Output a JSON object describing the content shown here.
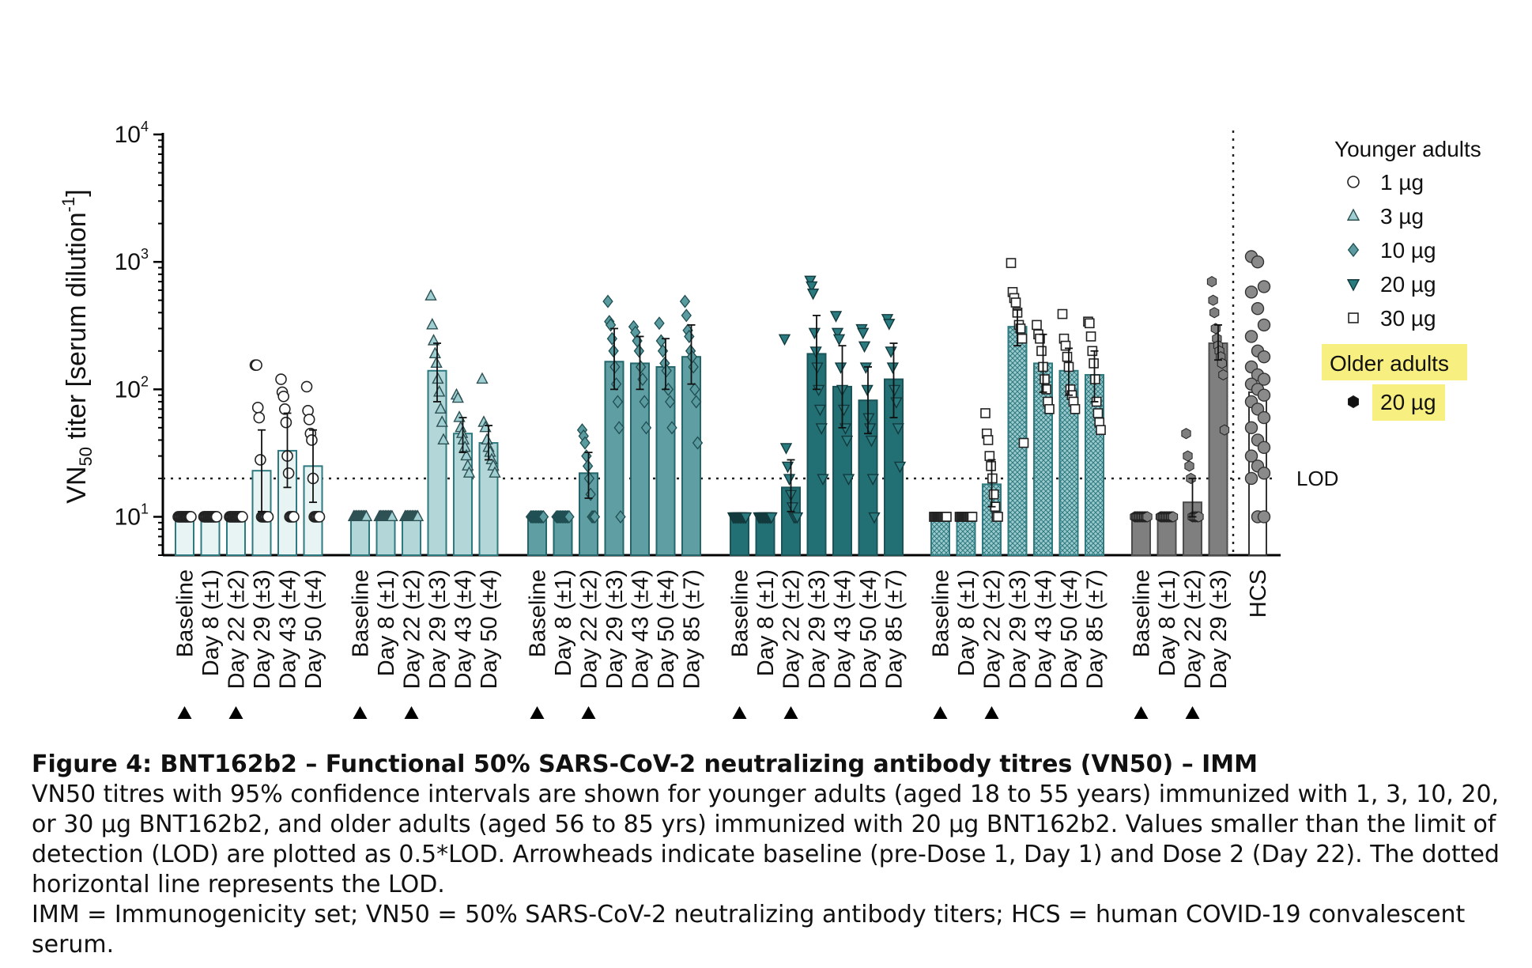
{
  "chart_data": {
    "type": "bar",
    "ylabel": "VN",
    "ylabel_sub": "50",
    "ylabel_rest": " titer [serum dilution",
    "ylabel_sup": "-1",
    "ylabel_end": "]",
    "yscale": "log",
    "ylim": [
      5,
      10000
    ],
    "yticks": [
      {
        "base": "10",
        "exp": "1",
        "value": 10
      },
      {
        "base": "10",
        "exp": "2",
        "value": 100
      },
      {
        "base": "10",
        "exp": "3",
        "value": 1000
      },
      {
        "base": "10",
        "exp": "4",
        "value": 10000
      }
    ],
    "lod": {
      "value": 20,
      "label": "LOD"
    },
    "legend": {
      "placement": "right",
      "young_title": "Younger adults",
      "old_title": "Older adults",
      "items": [
        {
          "label": "1 µg",
          "marker": "circle-open"
        },
        {
          "label": "3 µg",
          "marker": "triangle-up"
        },
        {
          "label": "10 µg",
          "marker": "diamond"
        },
        {
          "label": "20 µg",
          "marker": "triangle-down"
        },
        {
          "label": "30 µg",
          "marker": "square-open"
        }
      ],
      "old_items": [
        {
          "label": "20 µg",
          "marker": "hexagon"
        }
      ],
      "highlight_color": "#f7ef7f"
    },
    "groups": [
      {
        "name": "1 µg",
        "marker": "circle-open",
        "fill": "#e8f4f4",
        "stroke": "#2d7a80",
        "pattern": false,
        "categories": [
          "Baseline",
          "Day 8 (±1)",
          "Day 22 (±2)",
          "Day 29 (±3)",
          "Day 43 (±4)",
          "Day 50 (±4)"
        ],
        "values": [
          10,
          10,
          10,
          23,
          33,
          25
        ],
        "ci_low": [
          10,
          10,
          10,
          11,
          17,
          13
        ],
        "ci_high": [
          10,
          10,
          10,
          48,
          65,
          48
        ],
        "points": [
          [
            10,
            10,
            10,
            10,
            10,
            10,
            10,
            10,
            10,
            10,
            10,
            10
          ],
          [
            10,
            10,
            10,
            10,
            10,
            10,
            10,
            10,
            10,
            10,
            10,
            10
          ],
          [
            10,
            10,
            10,
            10,
            10,
            10,
            10,
            10,
            10,
            10,
            10,
            10
          ],
          [
            155,
            155,
            72,
            60,
            28,
            10,
            10,
            10,
            10,
            10,
            10
          ],
          [
            120,
            95,
            88,
            70,
            55,
            30,
            22,
            10,
            10,
            10,
            10
          ],
          [
            105,
            68,
            58,
            45,
            40,
            20,
            10,
            10,
            10,
            10,
            10
          ]
        ]
      },
      {
        "name": "3 µg",
        "marker": "triangle-up",
        "fill": "#b3d6d8",
        "stroke": "#2d7a80",
        "pattern": false,
        "categories": [
          "Baseline",
          "Day 8 (±1)",
          "Day 22 (±2)",
          "Day 29 (±3)",
          "Day 43 (±4)",
          "Day 50 (±4)"
        ],
        "values": [
          10,
          10,
          10,
          140,
          45,
          38
        ],
        "ci_low": [
          10,
          10,
          10,
          80,
          32,
          28
        ],
        "ci_high": [
          10,
          10,
          10,
          230,
          60,
          52
        ],
        "points": [
          [
            10,
            10,
            10,
            10,
            10,
            10,
            10,
            10,
            10,
            10,
            10,
            10
          ],
          [
            10,
            10,
            10,
            10,
            10,
            10,
            10,
            10,
            10,
            10,
            10,
            10
          ],
          [
            10,
            10,
            10,
            10,
            10,
            10,
            10,
            10,
            10,
            10,
            10,
            10
          ],
          [
            540,
            320,
            240,
            190,
            160,
            120,
            95,
            70,
            55,
            40
          ],
          [
            90,
            85,
            60,
            50,
            45,
            40,
            35,
            30,
            25,
            22
          ],
          [
            120,
            55,
            50,
            40,
            35,
            32,
            28,
            25,
            22
          ]
        ]
      },
      {
        "name": "10 µg",
        "marker": "diamond",
        "fill": "#5f9ea3",
        "stroke": "#23666b",
        "pattern": false,
        "categories": [
          "Baseline",
          "Day 8 (±1)",
          "Day 22 (±2)",
          "Day 29 (±3)",
          "Day 43 (±4)",
          "Day 50 (±4)",
          "Day 85 (±7)"
        ],
        "values": [
          10,
          10,
          22,
          165,
          160,
          150,
          180
        ],
        "ci_low": [
          10,
          10,
          14,
          100,
          100,
          100,
          110
        ],
        "ci_high": [
          10,
          10,
          32,
          300,
          260,
          250,
          320
        ],
        "points": [
          [
            10,
            10,
            10,
            10,
            10,
            10,
            10,
            10,
            10,
            10,
            10,
            10
          ],
          [
            10,
            10,
            10,
            10,
            10,
            10,
            10,
            10,
            10,
            10,
            10,
            10
          ],
          [
            48,
            43,
            38,
            30,
            25,
            20,
            15,
            10,
            10,
            10
          ],
          [
            490,
            340,
            320,
            250,
            200,
            150,
            110,
            80,
            50,
            10
          ],
          [
            310,
            280,
            240,
            200,
            150,
            120,
            80,
            50
          ],
          [
            330,
            240,
            200,
            160,
            140,
            100,
            80,
            50
          ],
          [
            490,
            380,
            290,
            260,
            200,
            180,
            150,
            100,
            80,
            38
          ]
        ]
      },
      {
        "name": "20 µg",
        "marker": "triangle-down",
        "fill": "#226f74",
        "stroke": "#1a5358",
        "pattern": false,
        "categories": [
          "Baseline",
          "Day 8 (±1)",
          "Day 22 (±2)",
          "Day 29 (±3)",
          "Day 43 (±4)",
          "Day 50 (±4)",
          "Day 85 (±7)"
        ],
        "values": [
          10,
          10,
          17,
          190,
          105,
          82,
          120
        ],
        "ci_low": [
          10,
          10,
          11,
          100,
          50,
          45,
          60
        ],
        "ci_high": [
          10,
          10,
          28,
          380,
          220,
          150,
          230
        ],
        "points": [
          [
            10,
            10,
            10,
            10,
            10,
            10,
            10,
            10,
            10,
            10,
            10,
            10
          ],
          [
            10,
            10,
            10,
            10,
            10,
            10,
            10,
            10,
            10,
            10,
            10,
            10
          ],
          [
            250,
            35,
            25,
            20,
            15,
            12,
            10,
            10,
            10
          ],
          [
            720,
            650,
            570,
            280,
            200,
            150,
            100,
            70,
            50,
            20
          ],
          [
            380,
            280,
            250,
            150,
            100,
            70,
            50,
            40,
            20
          ],
          [
            300,
            280,
            220,
            150,
            100,
            60,
            50,
            40,
            20,
            10
          ],
          [
            360,
            330,
            200,
            150,
            100,
            80,
            50,
            25
          ]
        ]
      },
      {
        "name": "30 µg",
        "marker": "square-open",
        "fill": "#8fc0c4",
        "stroke": "#2d7a80",
        "pattern": true,
        "categories": [
          "Baseline",
          "Day 8 (±1)",
          "Day 22 (±2)",
          "Day 29 (±3)",
          "Day 43 (±4)",
          "Day 50 (±4)",
          "Day 85 (±7)"
        ],
        "values": [
          10,
          10,
          18,
          310,
          160,
          140,
          130
        ],
        "ci_low": [
          10,
          10,
          12,
          220,
          95,
          90,
          80
        ],
        "ci_high": [
          10,
          10,
          28,
          420,
          270,
          210,
          200
        ],
        "points": [
          [
            10,
            10,
            10,
            10,
            10,
            10,
            10,
            10,
            10,
            10,
            10,
            10
          ],
          [
            10,
            10,
            10,
            10,
            10,
            10,
            10,
            10,
            10,
            10,
            10,
            10
          ],
          [
            65,
            45,
            40,
            30,
            25,
            20,
            15,
            12,
            10,
            10
          ],
          [
            980,
            580,
            520,
            480,
            400,
            320,
            300,
            250,
            38
          ],
          [
            320,
            270,
            250,
            200,
            150,
            120,
            100,
            80,
            70
          ],
          [
            390,
            250,
            220,
            180,
            150,
            100,
            90,
            80,
            70
          ],
          [
            340,
            330,
            260,
            200,
            160,
            120,
            80,
            65,
            55,
            48
          ]
        ]
      },
      {
        "name": "Older adults 20 µg",
        "marker": "hexagon",
        "fill": "#7f7f7f",
        "stroke": "#4d4d4d",
        "pattern": false,
        "categories": [
          "Baseline",
          "Day 8 (±1)",
          "Day 22 (±2)",
          "Day 29 (±3)"
        ],
        "values": [
          10,
          10,
          13,
          230
        ],
        "ci_low": [
          10,
          10,
          10,
          170
        ],
        "ci_high": [
          10,
          10,
          20,
          320
        ],
        "points": [
          [
            10,
            10,
            10,
            10,
            10,
            10,
            10,
            10,
            10,
            10,
            10,
            10
          ],
          [
            10,
            10,
            10,
            10,
            10,
            10,
            10,
            10,
            10,
            10,
            10,
            10
          ],
          [
            45,
            30,
            25,
            20,
            10,
            10,
            10,
            10,
            10
          ],
          [
            700,
            500,
            400,
            300,
            250,
            220,
            200,
            180,
            160,
            130,
            48
          ]
        ]
      }
    ],
    "hcs": {
      "category": "HCS",
      "value": 95,
      "fill": "#ffffff",
      "stroke": "#333333",
      "marker_color": "#8a8a8a",
      "points": [
        1100,
        1000,
        640,
        580,
        430,
        320,
        260,
        200,
        180,
        150,
        130,
        120,
        110,
        100,
        90,
        80,
        70,
        60,
        50,
        40,
        35,
        30,
        25,
        22,
        20,
        10,
        10
      ]
    },
    "arrowhead_marks": "Baseline, Day 22"
  },
  "caption": {
    "title": "Figure 4: BNT162b2 – Functional 50% SARS-CoV-2 neutralizing antibody titres (VN50) – IMM",
    "line1": "VN50 titres with 95% confidence intervals are shown for younger adults (aged 18 to 55 years) immunized with 1, 3, 10, 20, or 30 µg BNT162b2, and older adults (aged 56 to 85 yrs) immunized with 20 µg BNT162b2. Values smaller than the limit of detection (LOD) are plotted as 0.5*LOD. Arrowheads indicate baseline (pre-Dose 1, Day 1) and Dose 2 (Day 22). The dotted horizontal line represents the LOD.",
    "line2": "IMM = Immunogenicity set; VN50 = 50% SARS-CoV-2 neutralizing antibody titers; HCS = human COVID-19 convalescent serum."
  }
}
